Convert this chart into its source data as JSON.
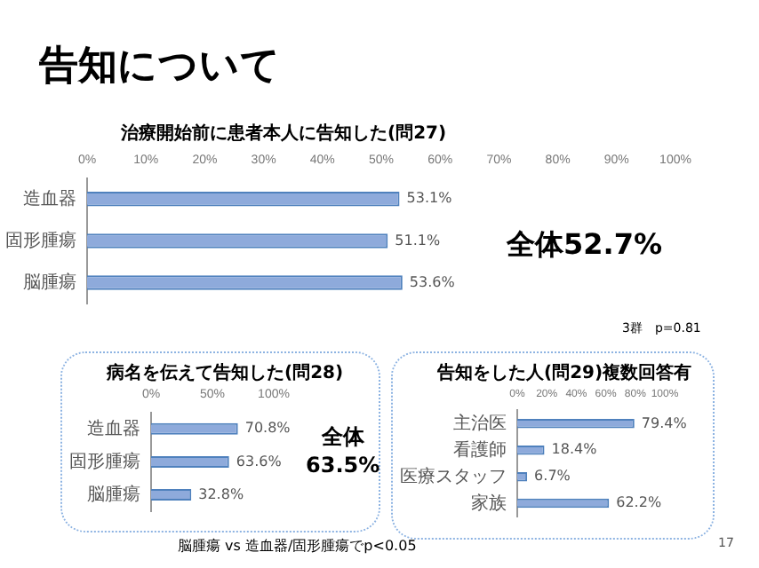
{
  "chart_data": [
    {
      "type": "bar",
      "orientation": "horizontal",
      "title": "治療開始前に患者本人に告知した(問27)",
      "categories": [
        "造血器",
        "固形腫瘍",
        "脳腫瘍"
      ],
      "values": [
        53.1,
        51.1,
        53.6
      ],
      "value_labels": [
        "53.1%",
        "51.1%",
        "53.6%"
      ],
      "color": "#8eaadb",
      "xlim": [
        0,
        100
      ],
      "xticks": [
        {
          "value": 0,
          "label": "0%"
        },
        {
          "value": 10,
          "label": "10%"
        },
        {
          "value": 20,
          "label": "20%"
        },
        {
          "value": 30,
          "label": "30%"
        },
        {
          "value": 40,
          "label": "40%"
        },
        {
          "value": 50,
          "label": "50%"
        },
        {
          "value": 60,
          "label": "60%"
        },
        {
          "value": 70,
          "label": "70%"
        },
        {
          "value": 80,
          "label": "80%"
        },
        {
          "value": 90,
          "label": "90%"
        },
        {
          "value": 100,
          "label": "100%"
        }
      ],
      "grid": false,
      "legend": false,
      "annotations": [
        "告知について",
        "全体52.7%",
        "3群　p=0.81"
      ]
    },
    {
      "type": "bar",
      "orientation": "horizontal",
      "title": "病名を伝えて告知した(問28)",
      "categories": [
        "造血器",
        "固形腫瘍",
        "脳腫瘍"
      ],
      "values": [
        70.8,
        63.6,
        32.8
      ],
      "value_labels": [
        "70.8%",
        "63.6%",
        "32.8%"
      ],
      "color": "#8eaadb",
      "xlim": [
        0,
        100
      ],
      "xticks": [
        {
          "value": 0,
          "label": "0%"
        },
        {
          "value": 50,
          "label": "50%"
        },
        {
          "value": 100,
          "label": "100%"
        }
      ],
      "grid": false,
      "legend": false,
      "annotations": [
        "全体\n63.5%",
        "脳腫瘍 vs 造血器/固形腫瘍でp<0.05"
      ]
    },
    {
      "type": "bar",
      "orientation": "horizontal",
      "title": "告知をした人(問29)複数回答有",
      "categories": [
        "主治医",
        "看護師",
        "医療スタッフ",
        "家族"
      ],
      "values": [
        79.4,
        18.4,
        6.7,
        62.2
      ],
      "value_labels": [
        "79.4%",
        "18.4%",
        "6.7%",
        "62.2%"
      ],
      "color": "#8eaadb",
      "xlim": [
        0,
        100
      ],
      "xticks": [
        {
          "value": 0,
          "label": "0%"
        },
        {
          "value": 20,
          "label": "20%"
        },
        {
          "value": 40,
          "label": "40%"
        },
        {
          "value": 60,
          "label": "60%"
        },
        {
          "value": 80,
          "label": "80%"
        },
        {
          "value": 100,
          "label": "100%"
        }
      ],
      "grid": false,
      "legend": false,
      "annotations": [
        "17"
      ]
    }
  ]
}
